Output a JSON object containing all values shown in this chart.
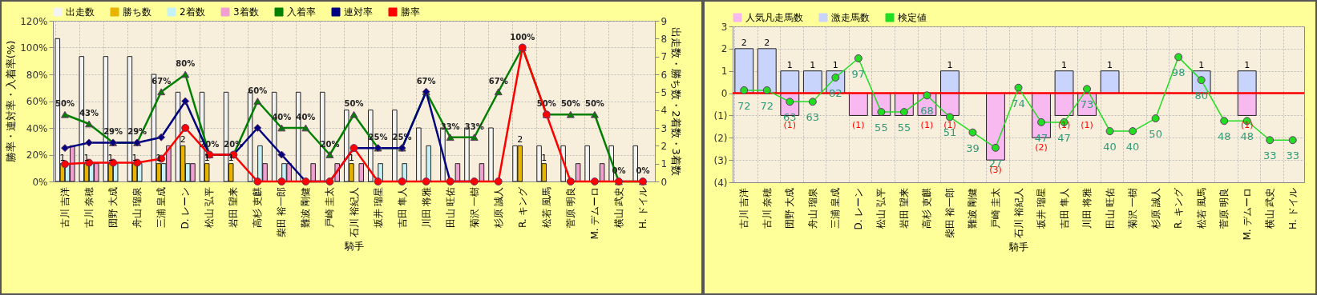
{
  "chart_data": [
    {
      "type": "bar",
      "xlabel": "騎手",
      "ylabel": "勝率・連対率・入着率(%)",
      "y2label": "出走数・勝ち数・2着数・3着数",
      "legend": "top",
      "grid": true,
      "categories": [
        "古川 吉洋",
        "古川 奈穂",
        "団野 大成",
        "舟山 瑠泉",
        "三浦 皇成",
        "D. レーン",
        "松山 弘平",
        "岩田 望来",
        "高杉 吏麒",
        "柴田 裕一郎",
        "難波 剛健",
        "戸崎 圭太",
        "石川 裕紀人",
        "坂井 瑠星",
        "吉田 隼人",
        "川田 将雅",
        "田山 旺佑",
        "菊沢 一樹",
        "杉原 誠人",
        "R. キング",
        "松若 風馬",
        "菅原 明良",
        "M. デムーロ",
        "横山 武史",
        "H. ドイル"
      ],
      "ylim": [
        0,
        120
      ],
      "yticks": [
        {
          "value": 0,
          "label": "0%"
        },
        {
          "value": 20,
          "label": "20%"
        },
        {
          "value": 40,
          "label": "40%"
        },
        {
          "value": 60,
          "label": "60%"
        },
        {
          "value": 80,
          "label": "80%"
        },
        {
          "value": 100,
          "label": "100%"
        },
        {
          "value": 120,
          "label": "120%"
        }
      ],
      "y2lim": [
        0,
        9
      ],
      "y2ticks": [
        0,
        1,
        2,
        3,
        4,
        5,
        6,
        7,
        8,
        9
      ],
      "series": [
        {
          "name": "出走数",
          "axis": "y2",
          "color": "#f4f4f4",
          "values": [
            8,
            7,
            7,
            7,
            6,
            5,
            5,
            5,
            5,
            5,
            5,
            5,
            4,
            4,
            4,
            3,
            3,
            3,
            3,
            2,
            2,
            2,
            2,
            2,
            2
          ]
        },
        {
          "name": "勝ち数",
          "axis": "y2",
          "color": "#e8b400",
          "values": [
            1,
            1,
            1,
            1,
            1,
            2,
            1,
            1,
            0,
            0,
            0,
            0,
            1,
            0,
            0,
            0,
            0,
            0,
            0,
            2,
            1,
            0,
            0,
            0,
            0
          ],
          "value_labels": [
            "1",
            "1",
            "1",
            "1",
            "1",
            "2",
            "1",
            "1",
            null,
            null,
            null,
            null,
            "1",
            null,
            null,
            null,
            null,
            null,
            null,
            "2",
            "1",
            null,
            null,
            null,
            null
          ]
        },
        {
          "name": "2着数",
          "axis": "y2",
          "color": "#c4f2f8",
          "values": [
            1,
            1,
            1,
            1,
            1,
            1,
            0,
            0,
            2,
            1,
            0,
            0,
            0,
            1,
            1,
            2,
            0,
            0,
            0,
            0,
            0,
            0,
            0,
            0,
            0
          ]
        },
        {
          "name": "3着数",
          "axis": "y2",
          "color": "#f0a0d0",
          "values": [
            2,
            1,
            0,
            0,
            2,
            1,
            0,
            0,
            1,
            1,
            1,
            1,
            1,
            0,
            0,
            0,
            1,
            1,
            0,
            0,
            0,
            1,
            1,
            0,
            0
          ]
        },
        {
          "name": "入着率",
          "type": "line",
          "axis": "y",
          "color": "#008000",
          "marker": "triangle",
          "values": [
            50,
            43,
            29,
            29,
            67,
            80,
            20,
            20,
            60,
            40,
            40,
            20,
            50,
            25,
            25,
            67,
            33,
            33,
            67,
            100,
            50,
            50,
            50,
            0,
            0
          ],
          "value_labels": [
            "50%",
            "43%",
            "29%",
            "29%",
            "67%",
            "80%",
            "20%",
            "20%",
            "60%",
            "40%",
            "40%",
            "20%",
            "50%",
            "25%",
            "25%",
            "67%",
            "33%",
            "33%",
            "67%",
            "100%",
            "50%",
            "50%",
            "50%",
            "0%",
            "0%"
          ]
        },
        {
          "name": "連対率",
          "type": "line",
          "axis": "y",
          "color": "#000080",
          "marker": "diamond",
          "values": [
            25,
            29,
            29,
            29,
            33,
            60,
            20,
            20,
            40,
            20,
            0,
            0,
            25,
            25,
            25,
            67,
            0,
            0,
            null,
            null,
            null,
            null,
            null,
            null,
            null
          ]
        },
        {
          "name": "勝率",
          "type": "line",
          "axis": "y",
          "color": "#ff0000",
          "marker": "circle",
          "values": [
            13,
            14,
            14,
            14,
            17,
            40,
            20,
            20,
            0,
            0,
            0,
            0,
            25,
            0,
            0,
            0,
            0,
            0,
            0,
            100,
            50,
            0,
            0,
            0,
            0
          ]
        }
      ]
    },
    {
      "type": "bar",
      "xlabel": "騎手",
      "legend": "top",
      "grid": true,
      "stacked": true,
      "tick_labels": "xy",
      "categories": [
        "古川 吉洋",
        "古川 奈穂",
        "団野 大成",
        "舟山 瑠泉",
        "三浦 皇成",
        "D. レーン",
        "松山 弘平",
        "岩田 望来",
        "高杉 吏麒",
        "柴田 裕一郎",
        "難波 剛健",
        "戸崎 圭太",
        "石川 裕紀人",
        "坂井 瑠星",
        "吉田 隼人",
        "川田 将雅",
        "田山 旺佑",
        "菊沢 一樹",
        "杉原 誠人",
        "R. キング",
        "松若 風馬",
        "菅原 明良",
        "M. デムーロ",
        "横山 武史",
        "H. ドイル"
      ],
      "ylim": [
        -4,
        3
      ],
      "yticks": [
        3,
        2,
        1,
        0,
        {
          "value": -1,
          "label": "(1)"
        },
        {
          "value": -2,
          "label": "(2)"
        },
        {
          "value": -3,
          "label": "(3)"
        },
        {
          "value": -4,
          "label": "(4)"
        }
      ],
      "y2lim": [
        0,
        122
      ],
      "ref_lines": [
        {
          "axis": "y",
          "value": 0,
          "color": "#ff0000"
        }
      ],
      "series": [
        {
          "name": "人気凡走馬数",
          "axis": "y",
          "color": "#f8b8f0",
          "values": [
            0,
            0,
            -1,
            0,
            0,
            -1,
            -1,
            -1,
            -1,
            -1,
            0,
            -3,
            0,
            -2,
            -1,
            -1,
            0,
            0,
            0,
            0,
            0,
            0,
            -1,
            0,
            0
          ],
          "value_labels": [
            null,
            null,
            "(1)",
            null,
            null,
            "(1)",
            null,
            null,
            "(1)",
            "(1)",
            null,
            "(3)",
            null,
            "(2)",
            "(1)",
            "(1)",
            null,
            null,
            null,
            null,
            null,
            null,
            "(1)",
            null,
            null
          ]
        },
        {
          "name": "激走馬数",
          "axis": "y",
          "color": "#c8d4fc",
          "values": [
            2,
            2,
            1,
            1,
            1,
            0,
            0,
            0,
            0,
            1,
            0,
            0,
            0,
            0,
            1,
            0,
            1,
            0,
            0,
            0,
            1,
            0,
            1,
            0,
            0
          ],
          "value_labels": [
            "2",
            "2",
            "1",
            "1",
            "1",
            null,
            null,
            null,
            null,
            "1",
            null,
            null,
            null,
            null,
            "1",
            null,
            "1",
            null,
            null,
            null,
            "1",
            null,
            "1",
            null,
            null
          ]
        },
        {
          "name": "検定値",
          "type": "line",
          "axis": "y2",
          "color": "#22dd22",
          "marker": "circle",
          "values": [
            72,
            72,
            63,
            63,
            82,
            97,
            55,
            55,
            68,
            51,
            39,
            27,
            74,
            47,
            47,
            73,
            40,
            40,
            50,
            98,
            80,
            48,
            48,
            33,
            33
          ],
          "value_labels": [
            "72",
            "72",
            "63",
            "63",
            "82",
            "97",
            "55",
            "55",
            "68",
            "51",
            "39",
            "27",
            "74",
            "47",
            "47",
            "73",
            "40",
            "40",
            "50",
            "98",
            "80",
            "48",
            "48",
            "33",
            "33"
          ]
        }
      ]
    }
  ]
}
